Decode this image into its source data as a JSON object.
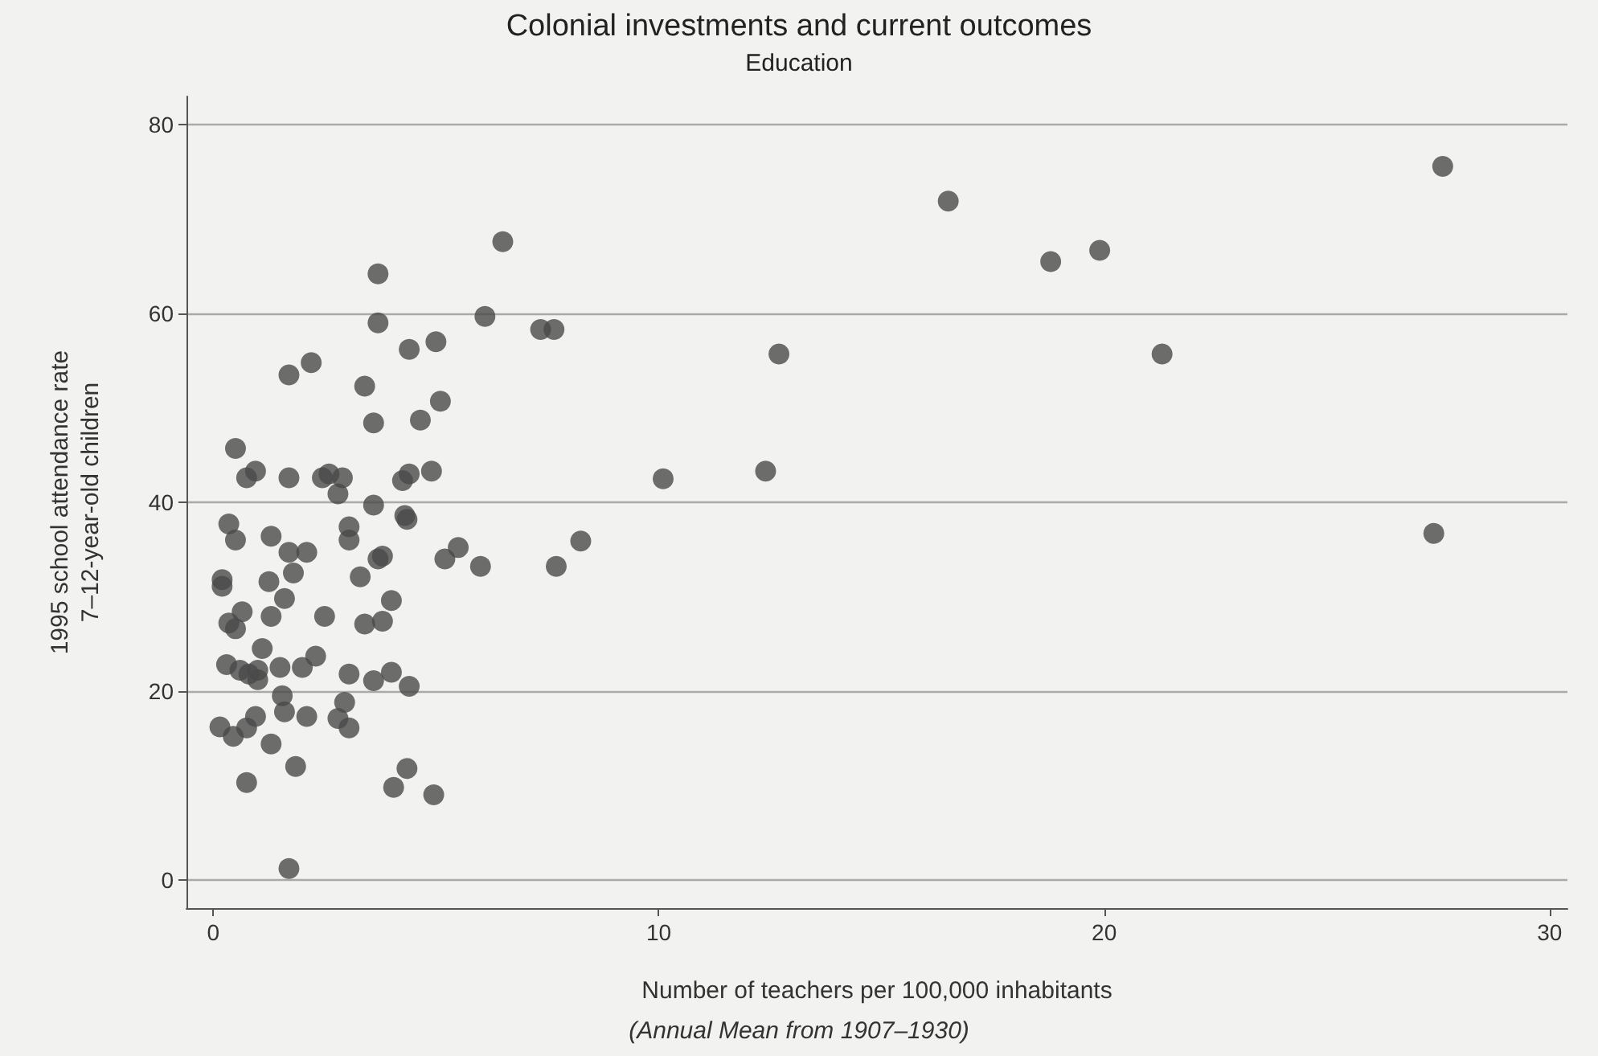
{
  "chart_data": {
    "type": "scatter",
    "title": "Colonial investments and current outcomes",
    "subtitle": "Education",
    "xlabel": "Number of teachers per 100,000 inhabitants",
    "ylabel": "1995 school attendance rate\n7–12-year-old children",
    "annotations": [
      "(Annual Mean from 1907–1930)"
    ],
    "x": [
      6.5,
      3.7,
      3.7,
      6.1,
      7.35,
      7.65,
      4.4,
      5.0,
      2.2,
      1.7,
      3.4,
      3.6,
      4.65,
      5.1,
      0.5,
      0.75,
      0.95,
      1.7,
      2.45,
      2.6,
      2.9,
      2.8,
      3.6,
      4.25,
      4.4,
      4.9,
      4.3,
      0.35,
      0.5,
      1.3,
      1.7,
      2.1,
      1.8,
      1.25,
      0.2,
      0.2,
      1.6,
      0.65,
      0.35,
      0.5,
      1.3,
      2.5,
      1.1,
      0.3,
      0.6,
      0.8,
      1.0,
      1.0,
      1.5,
      2.0,
      2.3,
      3.05,
      3.6,
      4.0,
      4.4,
      1.55,
      1.6,
      2.1,
      0.95,
      0.15,
      0.45,
      0.75,
      1.3,
      1.85,
      0.75,
      2.95,
      2.8,
      3.05,
      4.35,
      4.05,
      4.95,
      1.7,
      3.05,
      3.05,
      3.7,
      3.8,
      3.3,
      4.0,
      3.4,
      3.8,
      5.2,
      5.5,
      6.0,
      7.7,
      8.25,
      4.35,
      12.7,
      10.1,
      12.4,
      16.5,
      18.8,
      19.9,
      21.3,
      27.6,
      27.4
    ],
    "values": [
      67.6,
      64.2,
      59.0,
      59.7,
      58.3,
      58.3,
      56.2,
      57.0,
      54.8,
      53.5,
      52.3,
      48.4,
      48.7,
      50.7,
      45.7,
      42.6,
      43.3,
      42.6,
      42.6,
      43.0,
      42.6,
      40.9,
      39.7,
      42.3,
      43.0,
      43.3,
      38.6,
      37.7,
      36.0,
      36.4,
      34.7,
      34.7,
      32.5,
      31.6,
      31.8,
      31.1,
      29.8,
      28.4,
      27.2,
      26.6,
      27.9,
      27.9,
      24.5,
      22.8,
      22.2,
      21.8,
      22.2,
      21.2,
      22.5,
      22.5,
      23.7,
      21.8,
      21.1,
      22.0,
      20.5,
      19.5,
      17.8,
      17.3,
      17.3,
      16.2,
      15.2,
      16.1,
      14.4,
      12.0,
      10.3,
      18.8,
      17.1,
      16.1,
      11.8,
      9.8,
      9.0,
      1.2,
      37.4,
      36.0,
      34.0,
      34.3,
      32.1,
      29.6,
      27.1,
      27.4,
      34.0,
      35.2,
      33.2,
      33.2,
      35.9,
      38.2,
      55.7,
      42.5,
      43.3,
      71.9,
      65.5,
      66.7,
      55.7,
      75.6,
      36.7
    ],
    "color": "#4a4a4a",
    "marker": "circle",
    "xlim": [
      -0.6,
      30.4
    ],
    "xticks": [
      0,
      10,
      20,
      30
    ],
    "ylim": [
      -3,
      83
    ],
    "yticks": [
      0,
      20,
      40,
      60,
      80
    ],
    "grid": "y"
  }
}
